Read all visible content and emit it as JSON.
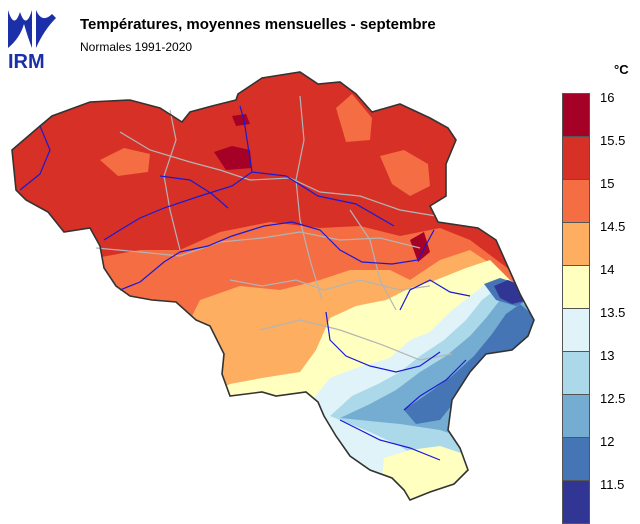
{
  "logo": {
    "text": "IRM",
    "color": "#1b2fa8"
  },
  "title": "Températures, moyennes mensuelles - septembre",
  "subtitle": "Normales 1991-2020",
  "legend": {
    "unit": "°C",
    "ticks": [
      "16",
      "15.5",
      "15",
      "14.5",
      "14",
      "13.5",
      "13",
      "12.5",
      "12",
      "11.5"
    ],
    "colors": [
      "#a50026",
      "#d73027",
      "#f46d43",
      "#fdae61",
      "#fee090",
      "#ffffbf",
      "#e0f3f8",
      "#abd9e9",
      "#74add1",
      "#4575b4",
      "#313695"
    ],
    "swatch_colors": [
      "#a50026",
      "#d73027",
      "#f46d43",
      "#fdae61",
      "#ffffbf",
      "#e0f3f8",
      "#abd9e9",
      "#74add1",
      "#4575b4",
      "#313695"
    ]
  },
  "map": {
    "region": "Belgium",
    "variable": "mean monthly temperature, September",
    "colors": {
      "red": "#d73027",
      "orange": "#f46d43",
      "light_orange": "#fdae61",
      "light_yellow": "#fee090",
      "pale": "#ffffbf",
      "light_blue": "#e0f3f8",
      "blue": "#abd9e9",
      "mid_blue": "#74add1",
      "dark_blue": "#4575b4",
      "navy": "#313695",
      "dark_red": "#a50026",
      "rivers": "#1a1ad6",
      "borders": "#b4b4b4"
    }
  }
}
